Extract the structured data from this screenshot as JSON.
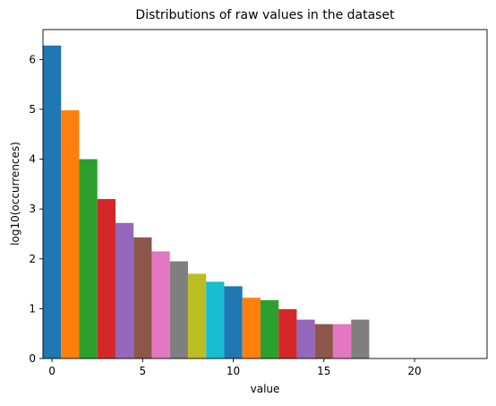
{
  "chart_data": {
    "type": "bar",
    "title": "Distributions of raw values in the dataset",
    "xlabel": "value",
    "ylabel": "log10(occurrences)",
    "xlim": [
      -0.5,
      24
    ],
    "ylim": [
      0,
      6.6
    ],
    "xticks": [
      0,
      5,
      10,
      15,
      20
    ],
    "yticks": [
      0,
      1,
      2,
      3,
      4,
      5,
      6
    ],
    "bar_width": 1,
    "grid": false,
    "legend": "none",
    "x": [
      0,
      1,
      2,
      3,
      4,
      5,
      6,
      7,
      8,
      9,
      10,
      11,
      12,
      13,
      14,
      15,
      16,
      17
    ],
    "values": [
      6.28,
      4.98,
      4.0,
      3.2,
      2.72,
      2.43,
      2.15,
      1.95,
      1.7,
      1.54,
      1.45,
      1.22,
      1.17,
      0.99,
      0.78,
      0.69,
      0.69,
      0.78
    ],
    "colors": [
      "#1f77b4",
      "#ff7f0e",
      "#2ca02c",
      "#d62728",
      "#9467bd",
      "#8c564b",
      "#e377c2",
      "#7f7f7f",
      "#bcbd22",
      "#17becf",
      "#1f77b4",
      "#ff7f0e",
      "#2ca02c",
      "#d62728",
      "#9467bd",
      "#8c564b",
      "#e377c2",
      "#7f7f7f"
    ]
  }
}
